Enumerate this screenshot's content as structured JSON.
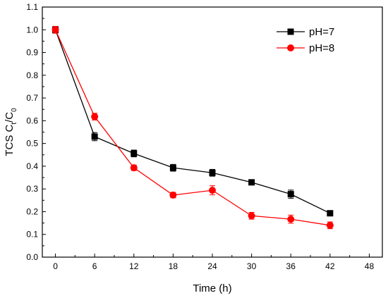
{
  "chart_data": {
    "type": "line",
    "xlabel": "Time (h)",
    "ylabel_main": "TCS C",
    "ylabel_sub1": "t",
    "ylabel_mid": "/C",
    "ylabel_sub2": "0",
    "xlim": [
      -2,
      50
    ],
    "ylim": [
      0.0,
      1.1
    ],
    "xticks": [
      0,
      6,
      12,
      18,
      24,
      30,
      36,
      42,
      48
    ],
    "yticks": [
      0.0,
      0.1,
      0.2,
      0.3,
      0.4,
      0.5,
      0.6,
      0.7,
      0.8,
      0.9,
      1.0,
      1.1
    ],
    "ytick_labels": [
      "0.0",
      "0.1",
      "0.2",
      "0.3",
      "0.4",
      "0.5",
      "0.6",
      "0.7",
      "0.8",
      "0.9",
      "1.0",
      "1.1"
    ],
    "x": [
      0,
      6,
      12,
      18,
      24,
      30,
      36,
      42
    ],
    "series": [
      {
        "name": "pH=7",
        "marker": "square",
        "color": "#000000",
        "values": [
          1.0,
          0.53,
          0.456,
          0.393,
          0.371,
          0.329,
          0.277,
          0.193
        ],
        "errors": [
          0.015,
          0.018,
          0.015,
          0.015,
          0.015,
          0.01,
          0.018,
          0.008
        ]
      },
      {
        "name": "pH=8",
        "marker": "circle",
        "color": "#ff0000",
        "values": [
          1.0,
          0.618,
          0.393,
          0.273,
          0.294,
          0.182,
          0.167,
          0.14
        ],
        "errors": [
          0.015,
          0.015,
          0.012,
          0.012,
          0.02,
          0.015,
          0.018,
          0.015
        ]
      }
    ],
    "grid": false,
    "legend_position": "top-right"
  }
}
